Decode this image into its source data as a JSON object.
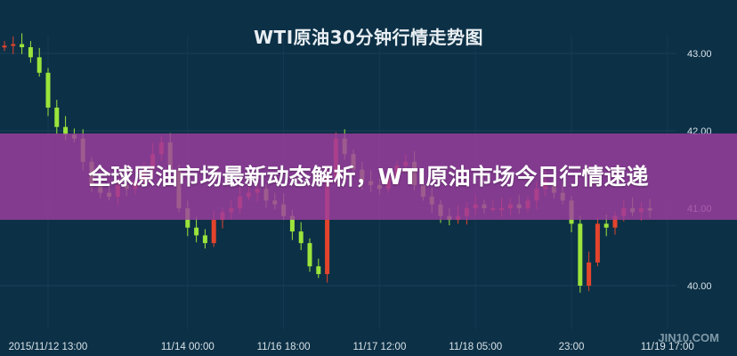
{
  "chart_data": {
    "type": "candlestick",
    "title": "WTI原油30分钟行情走势图",
    "ylim": [
      39.55,
      43.3
    ],
    "y_ticks": [
      "43.00",
      "42.00",
      "41.00",
      "40.00"
    ],
    "y_tick_values": [
      43,
      42,
      41,
      40
    ],
    "x_tick_labels": [
      "2015/11/12 13:00",
      "11/14 00:00",
      "11/16 18:00",
      "11/17 12:00",
      "11/18 05:00",
      "23:00",
      "11/19 17:00"
    ],
    "x_tick_candle_index": [
      5,
      21,
      32,
      43,
      54,
      65,
      76
    ],
    "closes": [
      43.1,
      43.12,
      43.08,
      42.95,
      42.75,
      42.3,
      42.05,
      41.95,
      41.9,
      41.6,
      41.3,
      41.2,
      41.15,
      41.3,
      41.25,
      41.35,
      41.5,
      41.7,
      41.85,
      41.5,
      41.0,
      40.75,
      40.65,
      40.55,
      40.85,
      40.95,
      41.0,
      41.15,
      41.2,
      41.25,
      41.1,
      41.05,
      40.9,
      40.7,
      40.55,
      40.25,
      40.15,
      41.4,
      41.9,
      41.7,
      41.5,
      41.35,
      41.3,
      41.25,
      41.4,
      41.55,
      41.6,
      41.3,
      41.15,
      41.05,
      40.9,
      40.85,
      40.9,
      41.0,
      41.05,
      41.0,
      41.0,
      41.0,
      41.05,
      41.0,
      41.1,
      41.25,
      41.35,
      41.2,
      41.1,
      40.8,
      40.0,
      40.3,
      40.8,
      40.75,
      40.9,
      41.0,
      40.95,
      41.0,
      40.97
    ],
    "grid": true,
    "colors": {
      "up": "#e4442c",
      "down": "#9be43c",
      "background": "#0c3046",
      "axis_text": "#d8e2e8"
    }
  },
  "banner": {
    "text": "全球原油市场最新动态解析，WTI原油市场今日行情速递",
    "color": "#9e3ea0"
  },
  "watermark": "JIN10.COM"
}
